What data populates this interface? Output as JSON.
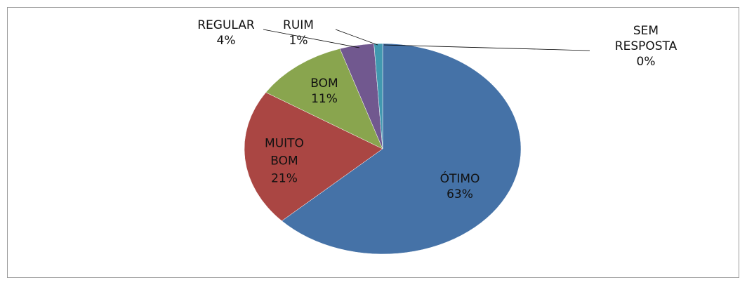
{
  "chart_data": {
    "type": "pie",
    "categories": [
      "ÓTIMO",
      "MUITO BOM",
      "BOM",
      "REGULAR",
      "RUIM",
      "SEM RESPOSTA"
    ],
    "values": [
      63,
      21,
      11,
      4,
      1,
      0
    ],
    "value_labels": [
      "63%",
      "21%",
      "11%",
      "4%",
      "1%",
      "0%"
    ],
    "colors": [
      "#4572a7",
      "#aa4643",
      "#89a54e",
      "#71588f",
      "#4198af",
      "#db843d"
    ]
  }
}
